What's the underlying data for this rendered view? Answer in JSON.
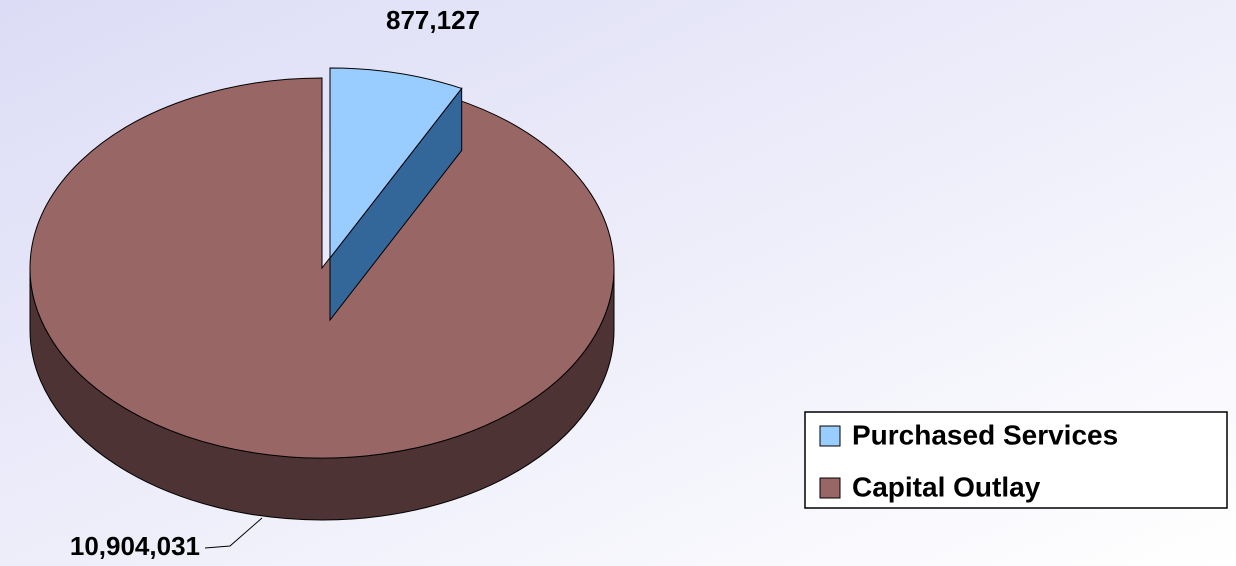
{
  "chart_data": {
    "type": "pie",
    "categories": [
      "Purchased Services",
      "Capital Outlay"
    ],
    "values": [
      877127,
      10904031
    ],
    "value_labels": [
      "877,127",
      "10,904,031"
    ],
    "colors": [
      "#99ccff",
      "#996666"
    ],
    "legend": "right"
  }
}
